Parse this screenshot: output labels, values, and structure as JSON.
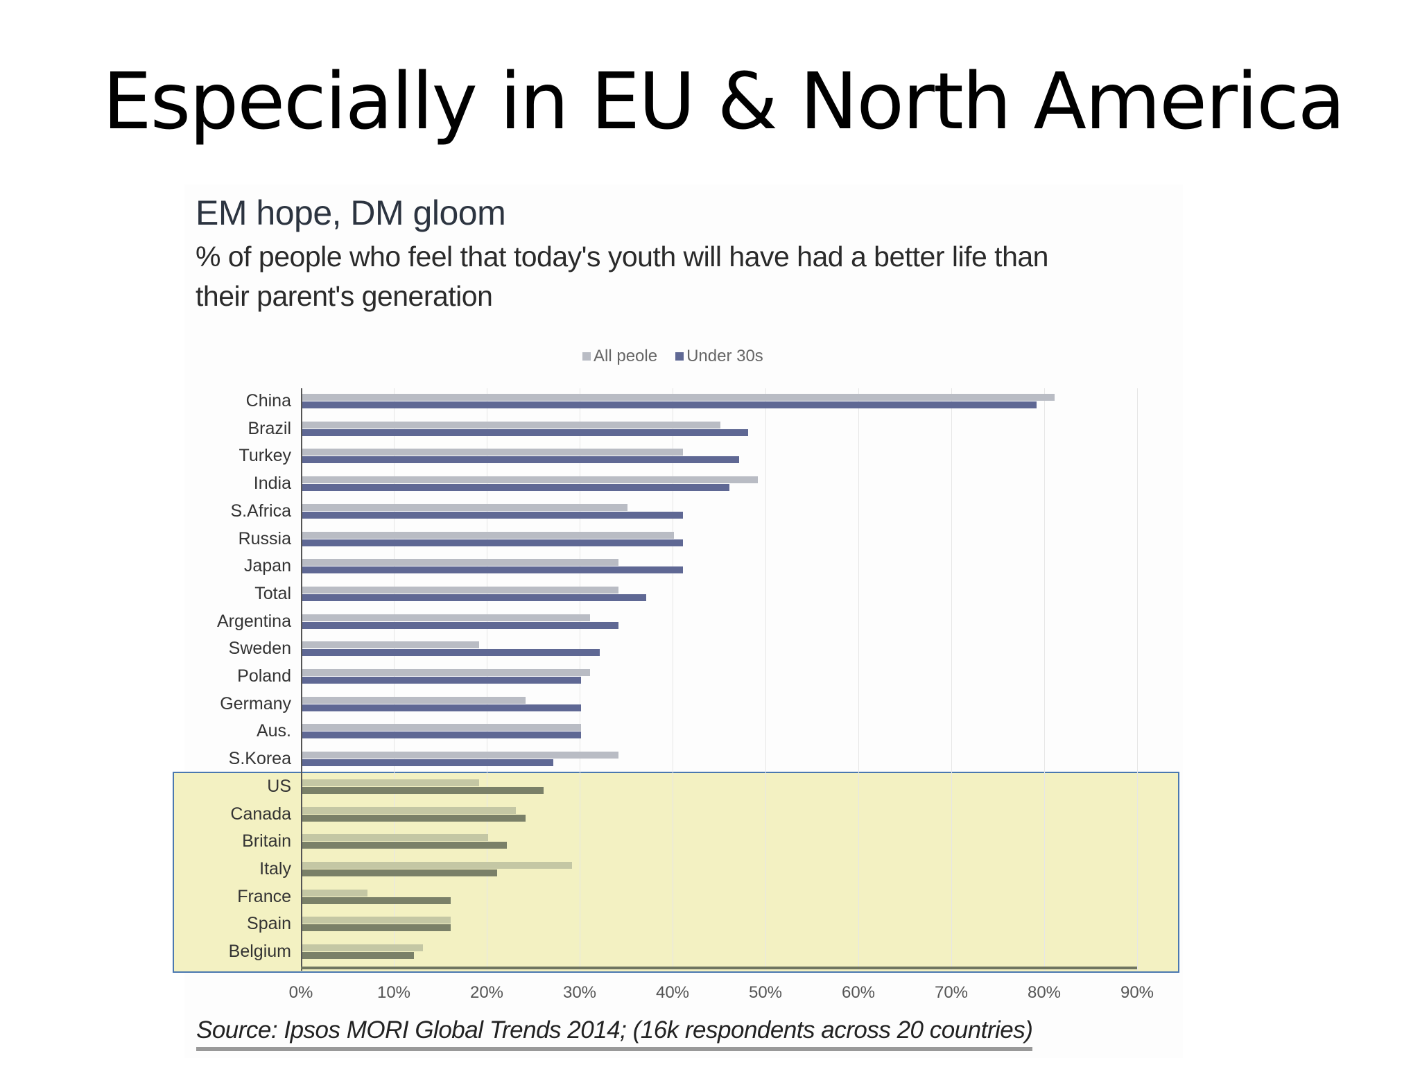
{
  "slide": {
    "title": "Especially in EU & North America"
  },
  "chart": {
    "title": "EM hope, DM gloom",
    "subtitle_line1": "% of people who feel that today's youth will have had a better life than",
    "subtitle_line2": "their parent's generation",
    "legend": [
      {
        "label": "All peole",
        "color": "#b9bcc4"
      },
      {
        "label": "Under 30s",
        "color": "#5f6894"
      }
    ],
    "x_ticks": [
      "0%",
      "10%",
      "20%",
      "30%",
      "40%",
      "50%",
      "60%",
      "70%",
      "80%",
      "90%"
    ],
    "source": "Source: Ipsos MORI Global Trends 2014; (16k respondents across 20 countries)",
    "highlight_color": "#eeeca9",
    "highlight_border": "#4a78b0"
  },
  "chart_data": {
    "type": "bar",
    "orientation": "horizontal",
    "title": "EM hope, DM gloom",
    "subtitle": "% of people who feel that today's youth will have had a better life than their parent's generation",
    "xlabel": "",
    "ylabel": "",
    "xlim": [
      0,
      90
    ],
    "x_ticks": [
      "0%",
      "10%",
      "20%",
      "30%",
      "40%",
      "50%",
      "60%",
      "70%",
      "80%",
      "90%"
    ],
    "grid": true,
    "legend_position": "top",
    "categories": [
      "China",
      "Brazil",
      "Turkey",
      "India",
      "S.Africa",
      "Russia",
      "Japan",
      "Total",
      "Argentina",
      "Sweden",
      "Poland",
      "Germany",
      "Aus.",
      "S.Korea",
      "US",
      "Canada",
      "Britain",
      "Italy",
      "France",
      "Spain",
      "Belgium"
    ],
    "series": [
      {
        "name": "All peole",
        "values": [
          81,
          45,
          41,
          49,
          35,
          40,
          34,
          34,
          31,
          19,
          31,
          24,
          30,
          34,
          19,
          23,
          20,
          29,
          7,
          16,
          13
        ]
      },
      {
        "name": "Under 30s",
        "values": [
          79,
          48,
          47,
          46,
          41,
          41,
          41,
          37,
          34,
          32,
          30,
          30,
          30,
          27,
          26,
          24,
          22,
          21,
          16,
          16,
          12
        ]
      }
    ],
    "annotations": [
      "Highlighted region: US, Canada, Britain, Italy, France, Spain, Belgium"
    ],
    "source": "Source: Ipsos MORI Global Trends 2014; (16k respondents across 20 countries)"
  }
}
